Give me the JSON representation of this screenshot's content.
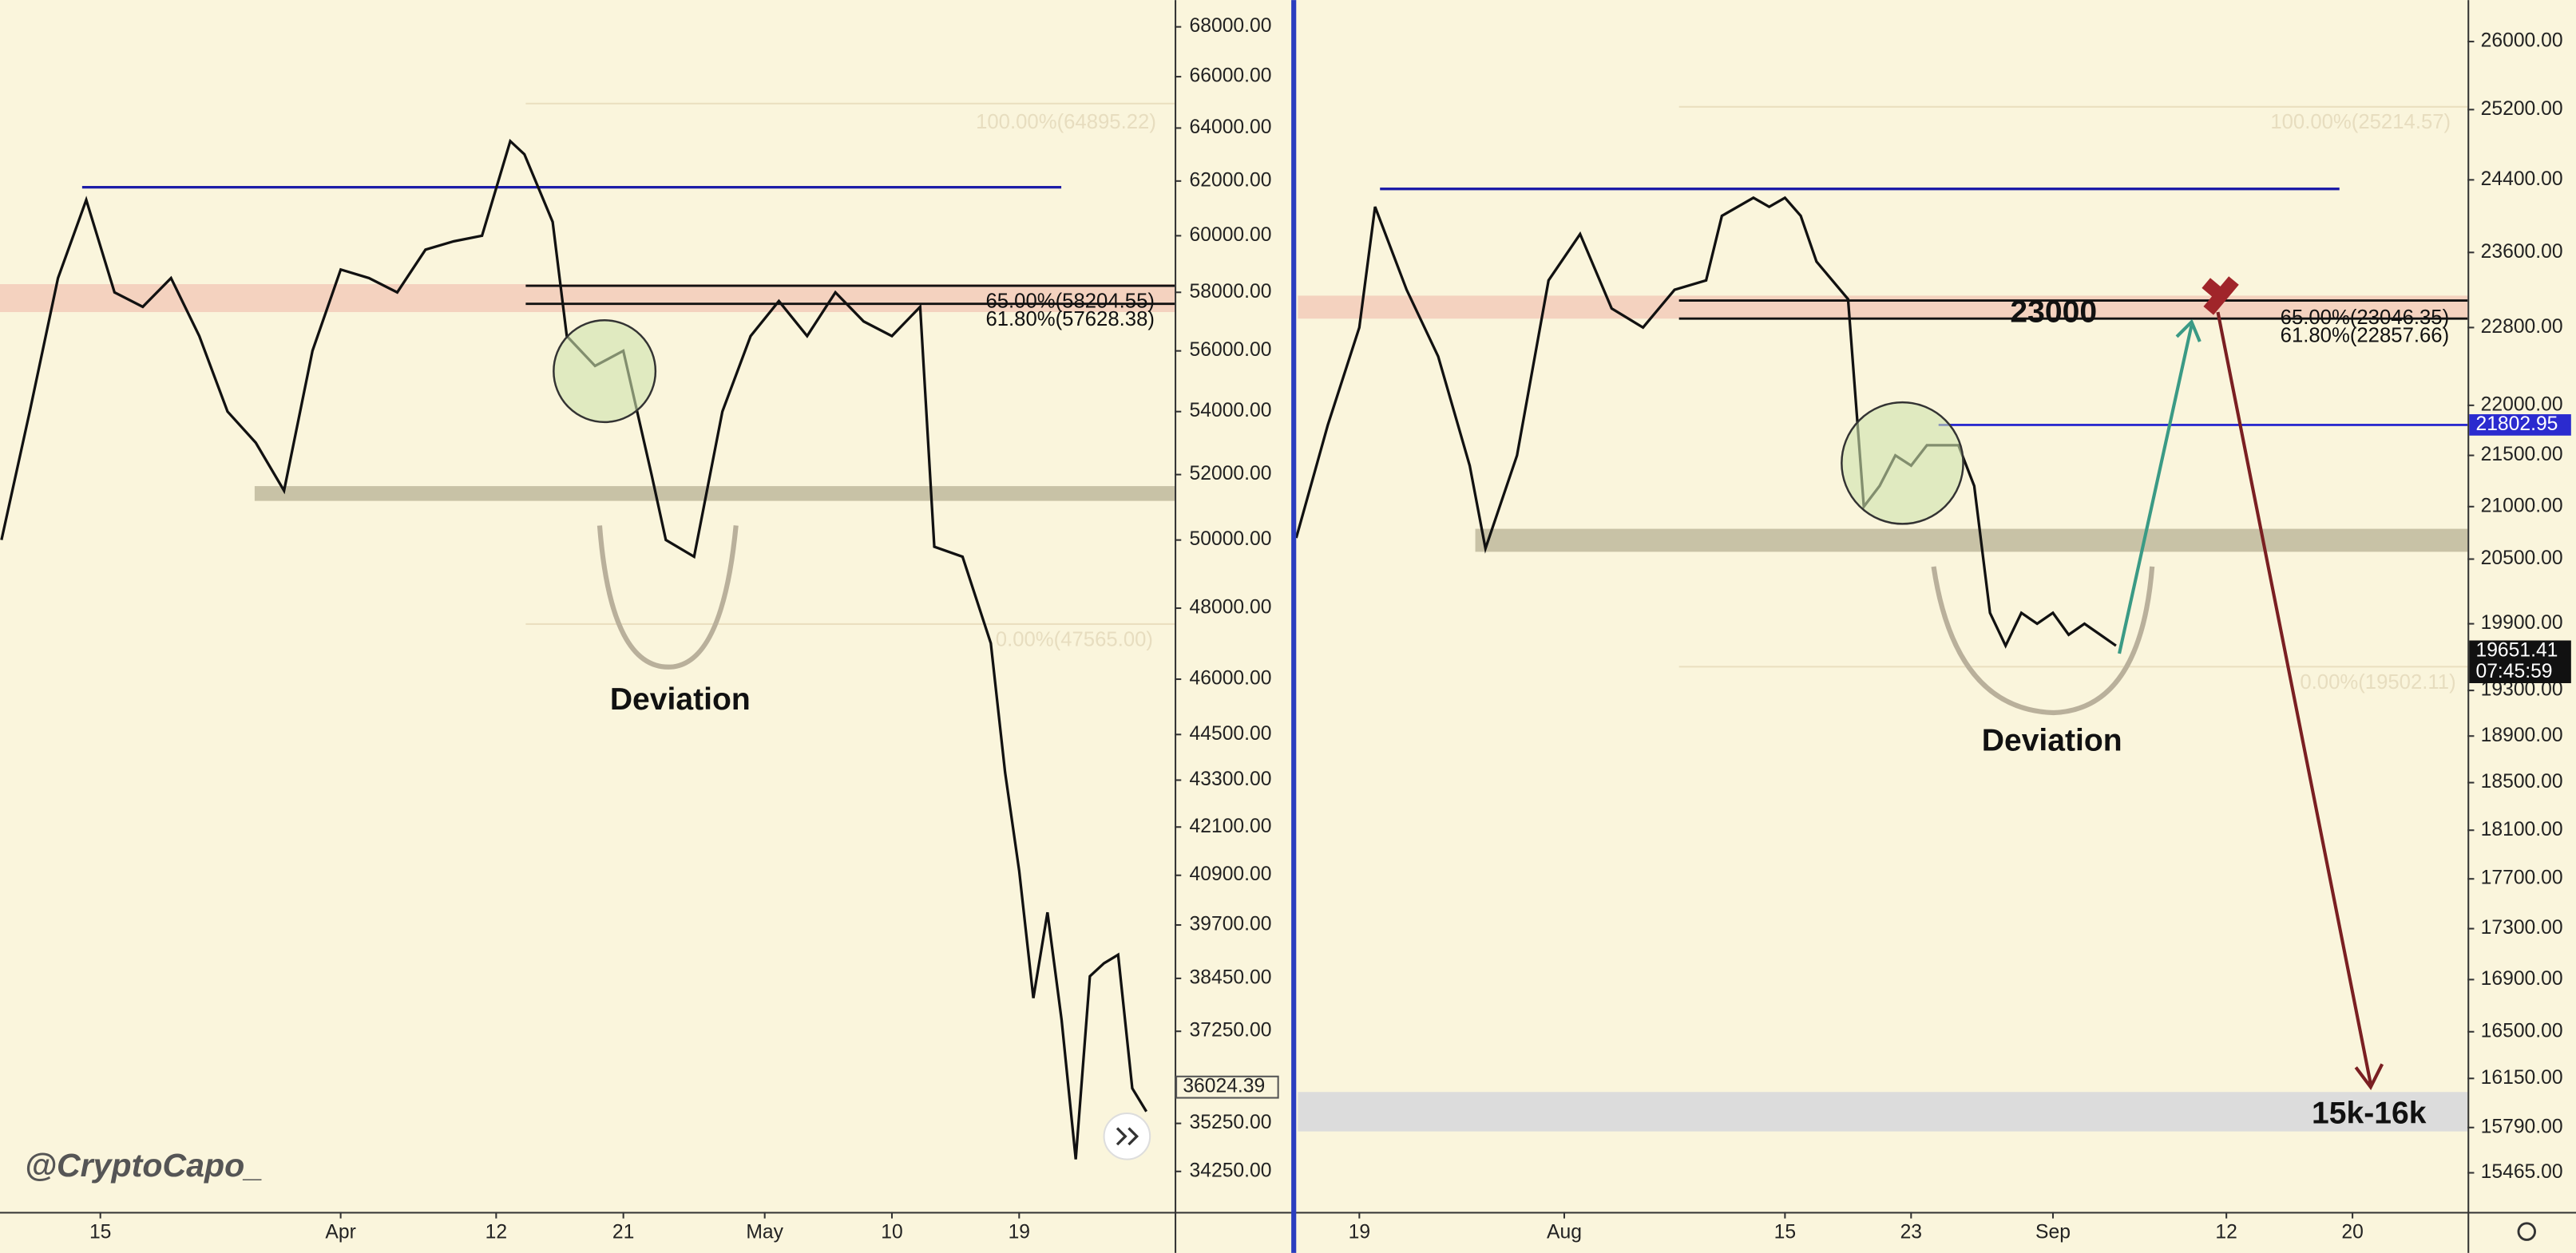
{
  "watermark": "@CryptoCapo_",
  "chart_data": [
    {
      "type": "line",
      "log_scale": true,
      "color": "#111111",
      "x": [
        67,
        69,
        71,
        73,
        75,
        77,
        79,
        81,
        83,
        85,
        87,
        89,
        91,
        93,
        95,
        97,
        99,
        101,
        103,
        104,
        106,
        107,
        109,
        111,
        113,
        114,
        116,
        118,
        120,
        122,
        124,
        126,
        128,
        130,
        132,
        133,
        135,
        137,
        138,
        139,
        140,
        141,
        142,
        143,
        144,
        145,
        146,
        147,
        148
      ],
      "values": [
        50000,
        54000,
        58500,
        61300,
        58000,
        57500,
        58500,
        56500,
        54000,
        53000,
        51500,
        56000,
        58800,
        58500,
        58000,
        59500,
        59800,
        60000,
        63500,
        63000,
        60500,
        56500,
        55500,
        56000,
        52000,
        50000,
        49500,
        54000,
        56500,
        57700,
        56500,
        58000,
        57000,
        56500,
        57500,
        49800,
        49500,
        47000,
        43500,
        41000,
        38000,
        40000,
        37500,
        34500,
        38500,
        38800,
        39000,
        36000,
        35500
      ],
      "xlim": [
        66.9,
        150
      ],
      "ylim": [
        33430,
        69100
      ],
      "xticks": [
        {
          "value": 74,
          "label": "15"
        },
        {
          "value": 91,
          "label": "Apr"
        },
        {
          "value": 102,
          "label": "12"
        },
        {
          "value": 111,
          "label": "21"
        },
        {
          "value": 121,
          "label": "May"
        },
        {
          "value": 130,
          "label": "10"
        },
        {
          "value": 139,
          "label": "19"
        }
      ],
      "yticks": [
        {
          "value": 68000,
          "label": "68000.00"
        },
        {
          "value": 66000,
          "label": "66000.00"
        },
        {
          "value": 64000,
          "label": "64000.00"
        },
        {
          "value": 62000,
          "label": "62000.00"
        },
        {
          "value": 60000,
          "label": "60000.00"
        },
        {
          "value": 58000,
          "label": "58000.00"
        },
        {
          "value": 56000,
          "label": "56000.00"
        },
        {
          "value": 54000,
          "label": "54000.00"
        },
        {
          "value": 52000,
          "label": "52000.00"
        },
        {
          "value": 50000,
          "label": "50000.00"
        },
        {
          "value": 48000,
          "label": "48000.00"
        },
        {
          "value": 46000,
          "label": "46000.00"
        },
        {
          "value": 44500,
          "label": "44500.00"
        },
        {
          "value": 43300,
          "label": "43300.00"
        },
        {
          "value": 42100,
          "label": "42100.00"
        },
        {
          "value": 40900,
          "label": "40900.00"
        },
        {
          "value": 39700,
          "label": "39700.00"
        },
        {
          "value": 38450,
          "label": "38450.00"
        },
        {
          "value": 37250,
          "label": "37250.00"
        },
        {
          "value": 35250,
          "label": "35250.00"
        },
        {
          "value": 34250,
          "label": "34250.00"
        }
      ],
      "price_labels": [
        {
          "value": 36024.39,
          "label": "36024.39"
        }
      ],
      "annotations": [
        "Deviation",
        "100.00%(64895.22)",
        "65.00%(58204.55)",
        "61.80%(57628.38)",
        "0.00%(47565.00)"
      ]
    },
    {
      "type": "line",
      "log_scale": true,
      "color": "#111111",
      "x": [
        196,
        198,
        200,
        201,
        203,
        205,
        207,
        208,
        210,
        212,
        214,
        216,
        218,
        220,
        222,
        223,
        225,
        226,
        227,
        228,
        229,
        230,
        231,
        232,
        233,
        234,
        235,
        236,
        237,
        238,
        239,
        240,
        241,
        242,
        243,
        244,
        245,
        246,
        247,
        248
      ],
      "values": [
        20700,
        21800,
        22800,
        24100,
        23200,
        22500,
        21400,
        20600,
        21500,
        23300,
        23800,
        23000,
        22800,
        23200,
        23300,
        24000,
        24200,
        24100,
        24200,
        24000,
        23500,
        23300,
        23100,
        21000,
        21200,
        21500,
        21400,
        21600,
        21600,
        21600,
        21200,
        20000,
        19700,
        20000,
        19900,
        20000,
        19800,
        19900,
        19800,
        19700
      ],
      "xlim": [
        196.1,
        270.3
      ],
      "ylim": [
        15190,
        26500
      ],
      "xticks": [
        {
          "value": 200,
          "label": "19"
        },
        {
          "value": 213,
          "label": "Aug"
        },
        {
          "value": 227,
          "label": "15"
        },
        {
          "value": 235,
          "label": "23"
        },
        {
          "value": 244,
          "label": "Sep"
        },
        {
          "value": 255,
          "label": "12"
        },
        {
          "value": 263,
          "label": "20"
        }
      ],
      "yticks": [
        {
          "value": 26000,
          "label": "26000.00"
        },
        {
          "value": 25200,
          "label": "25200.00"
        },
        {
          "value": 24400,
          "label": "24400.00"
        },
        {
          "value": 23600,
          "label": "23600.00"
        },
        {
          "value": 22800,
          "label": "22800.00"
        },
        {
          "value": 22000,
          "label": "22000.00"
        },
        {
          "value": 21500,
          "label": "21500.00"
        },
        {
          "value": 21000,
          "label": "21000.00"
        },
        {
          "value": 20500,
          "label": "20500.00"
        },
        {
          "value": 19900,
          "label": "19900.00"
        },
        {
          "value": 19300,
          "label": "19300.00"
        },
        {
          "value": 18900,
          "label": "18900.00"
        },
        {
          "value": 18500,
          "label": "18500.00"
        },
        {
          "value": 18100,
          "label": "18100.00"
        },
        {
          "value": 17700,
          "label": "17700.00"
        },
        {
          "value": 17300,
          "label": "17300.00"
        },
        {
          "value": 16900,
          "label": "16900.00"
        },
        {
          "value": 16500,
          "label": "16500.00"
        },
        {
          "value": 16150,
          "label": "16150.00"
        },
        {
          "value": 15790,
          "label": "15790.00"
        },
        {
          "value": 15465,
          "label": "15465.00"
        }
      ],
      "price_labels": [
        {
          "value": 21802.95,
          "label": "21802.95"
        },
        {
          "value": 19651.41,
          "label": "19651.41"
        }
      ],
      "countdown": "07:45:59",
      "annotations": [
        "Deviation",
        "23000",
        "15k-16k",
        "100.00%(25214.57)",
        "65.00%(23046.35)",
        "61.80%(22857.66)",
        "0.00%(19502.11)"
      ]
    }
  ]
}
